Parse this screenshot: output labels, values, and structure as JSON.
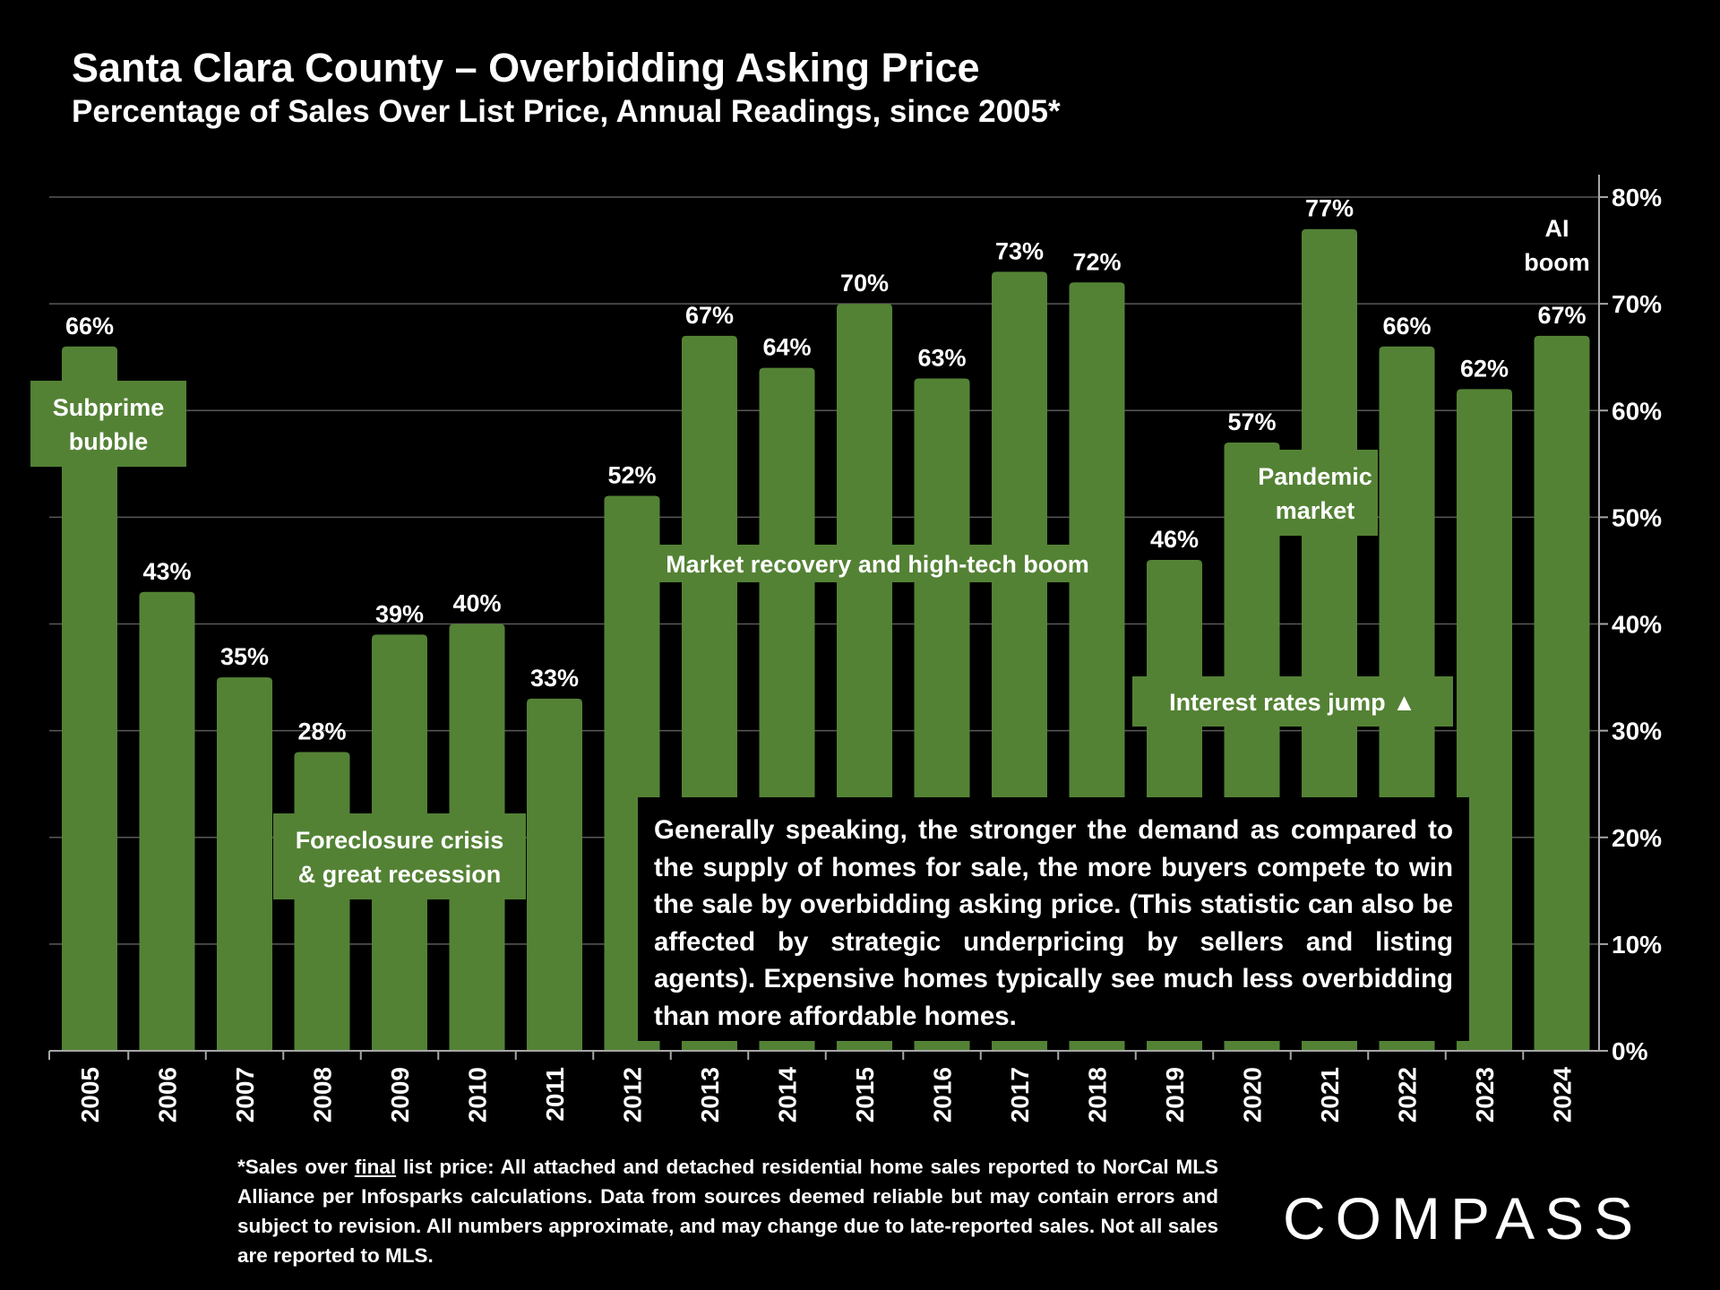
{
  "title": "Santa Clara County – Overbidding Asking Price",
  "subtitle": "Percentage of Sales Over List Price, Annual Readings, since 2005*",
  "colors": {
    "bar": "#548235",
    "background": "#000000",
    "grid": "#595959",
    "text": "#ffffff"
  },
  "chart_data": {
    "type": "bar",
    "categories": [
      "2005",
      "2006",
      "2007",
      "2008",
      "2009",
      "2010",
      "2011",
      "2012",
      "2013",
      "2014",
      "2015",
      "2016",
      "2017",
      "2018",
      "2019",
      "2020",
      "2021",
      "2022",
      "2023",
      "2024"
    ],
    "values": [
      66,
      43,
      35,
      28,
      39,
      40,
      33,
      52,
      67,
      64,
      70,
      63,
      73,
      72,
      46,
      57,
      77,
      66,
      62,
      67
    ],
    "value_labels": [
      "66%",
      "43%",
      "35%",
      "28%",
      "39%",
      "40%",
      "33%",
      "52%",
      "67%",
      "64%",
      "70%",
      "63%",
      "73%",
      "72%",
      "46%",
      "57%",
      "77%",
      "66%",
      "62%",
      "67%"
    ],
    "ylim": [
      0,
      80
    ],
    "y_ticks": [
      0,
      10,
      20,
      30,
      40,
      50,
      60,
      70,
      80
    ],
    "y_tick_labels": [
      "0%",
      "10%",
      "20%",
      "30%",
      "40%",
      "50%",
      "60%",
      "70%",
      "80%"
    ],
    "y_axis_side": "right",
    "grid": true,
    "annotations": {
      "subprime": [
        "Subprime",
        "bubble"
      ],
      "foreclosure": [
        "Foreclosure crisis",
        "& great recession"
      ],
      "recovery": "Market recovery and high-tech boom",
      "pandemic": [
        "Pandemic",
        "market"
      ],
      "rates": "Interest rates jump ▲",
      "ai": [
        "AI",
        "boom"
      ]
    }
  },
  "note_text": "Generally speaking, the stronger the demand as compared to the supply of homes for sale, the more buyers compete to win the sale by overbidding asking price. (This statistic can also be affected by strategic underpricing by sellers and listing agents). Expensive homes typically see much less overbidding than more affordable homes.",
  "footnote": {
    "prefix": "*Sales over ",
    "underlined": "final",
    "rest": " list price: All attached and detached residential home sales reported to NorCal MLS Alliance per Infosparks calculations. Data from sources deemed reliable but may contain errors and subject to revision. All numbers approximate, and may change due to late-reported sales. Not all sales are reported to MLS."
  },
  "logo_text": "COMPASS"
}
